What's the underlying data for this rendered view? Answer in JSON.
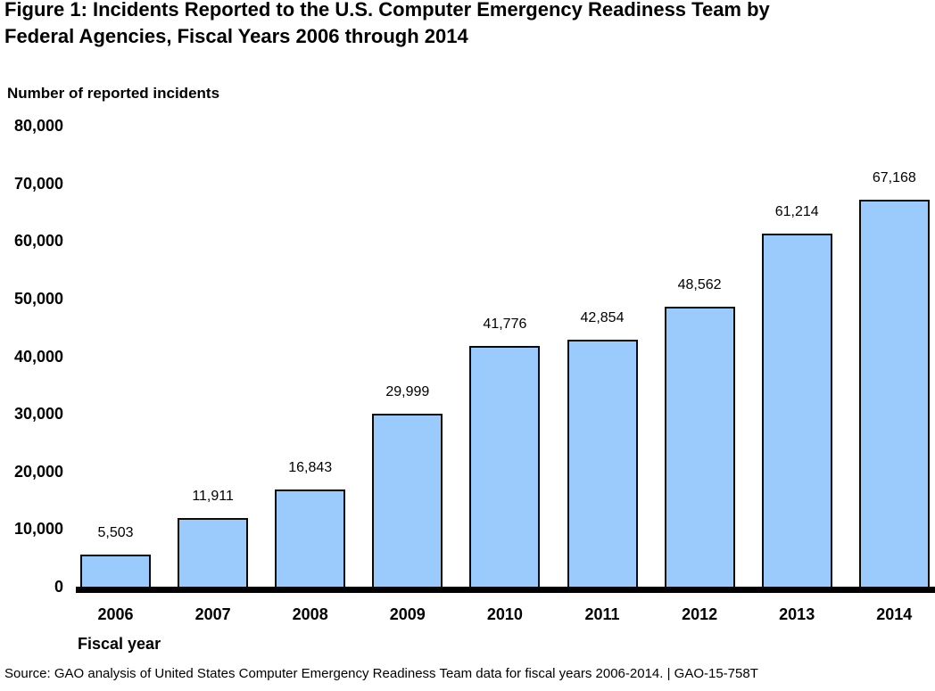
{
  "title": {
    "line1": "Figure 1: Incidents Reported to the U.S. Computer Emergency Readiness Team by",
    "line2": "Federal Agencies, Fiscal Years 2006 through 2014"
  },
  "source_line": "Source: GAO analysis of United States Computer Emergency Readiness Team data for fiscal years 2006-2014.  |  GAO-15-758T",
  "chart_data": {
    "type": "bar",
    "title": "Figure 1: Incidents Reported to the U.S. Computer Emergency Readiness Team by Federal Agencies, Fiscal Years 2006 through 2014",
    "ylabel": "Number of reported incidents",
    "xlabel": "Fiscal year",
    "categories": [
      "2006",
      "2007",
      "2008",
      "2009",
      "2010",
      "2011",
      "2012",
      "2013",
      "2014"
    ],
    "values": [
      5503,
      11911,
      16843,
      29999,
      41776,
      42854,
      48562,
      61214,
      67168
    ],
    "value_labels": [
      "5,503",
      "11,911",
      "16,843",
      "29,999",
      "41,776",
      "42,854",
      "48,562",
      "61,214",
      "67,168"
    ],
    "ylim": [
      0,
      80000
    ],
    "yticks": [
      0,
      10000,
      20000,
      30000,
      40000,
      50000,
      60000,
      70000,
      80000
    ],
    "ytick_labels": [
      "0",
      "10,000",
      "20,000",
      "30,000",
      "40,000",
      "50,000",
      "60,000",
      "70,000",
      "80,000"
    ],
    "grid": false,
    "legend": "none",
    "bar_color": "#9ACBFC",
    "bar_border_color": "#0A0A0A",
    "axis_line_color": "#000000",
    "text_color": "#000000"
  }
}
